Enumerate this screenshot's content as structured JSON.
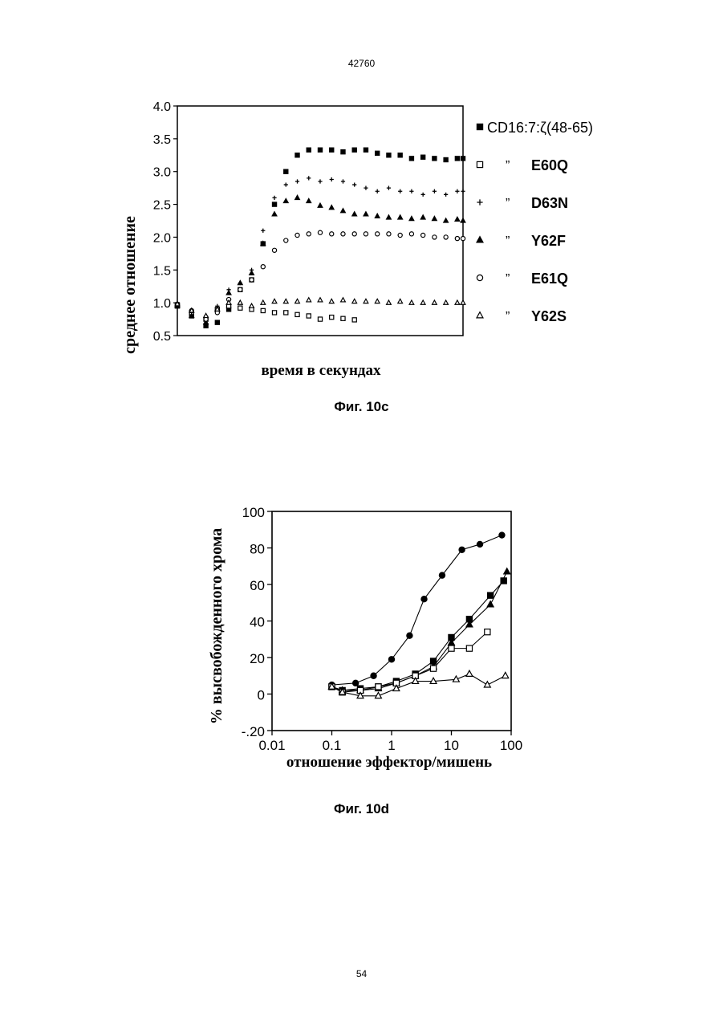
{
  "header": {
    "doc_number": "42760"
  },
  "footer": {
    "page_number": "54"
  },
  "figures": {
    "fig_10c": {
      "caption": "Фиг. 10с"
    },
    "fig_10d": {
      "caption": "Фиг. 10d"
    }
  },
  "chart_data": [
    {
      "type": "scatter",
      "title": "",
      "xlabel": "время в секундах",
      "ylabel": "среднее отношение",
      "xlim": [
        0,
        100
      ],
      "ylim": [
        0.5,
        4.0
      ],
      "yticks": [
        "4.0",
        "3.5",
        "3.0",
        "2.5",
        "2.0",
        "1.5",
        "1.0",
        "0.5"
      ],
      "grid": false,
      "legend_position": "right",
      "series": [
        {
          "name": "CD16:7:ζ(48-65)",
          "marker": "square-filled",
          "x": [
            0,
            5,
            10,
            14,
            18,
            22,
            26,
            30,
            34,
            38,
            42,
            46,
            50,
            54,
            58,
            62,
            66,
            70,
            74,
            78,
            82,
            86,
            90,
            94,
            98,
            100
          ],
          "y": [
            0.95,
            0.8,
            0.65,
            0.7,
            0.9,
            1.2,
            1.35,
            1.9,
            2.5,
            3.0,
            3.25,
            3.33,
            3.33,
            3.33,
            3.3,
            3.33,
            3.33,
            3.28,
            3.25,
            3.25,
            3.2,
            3.22,
            3.2,
            3.18,
            3.2,
            3.2
          ]
        },
        {
          "name": "E60Q",
          "marker": "square-open",
          "x": [
            0,
            5,
            10,
            14,
            18,
            22,
            26,
            30,
            34,
            38,
            42,
            46,
            50,
            54,
            58,
            62,
            66,
            70,
            74,
            78,
            82,
            86,
            90,
            94,
            98,
            100
          ],
          "y": [
            0.97,
            0.85,
            0.75,
            0.9,
            0.95,
            0.92,
            0.9,
            0.88,
            0.85,
            0.85,
            0.82,
            0.8,
            0.75,
            0.78,
            0.76,
            0.74,
            null,
            null,
            null,
            null,
            null,
            null,
            null,
            null,
            null,
            null
          ]
        },
        {
          "name": "D63N",
          "marker": "plus",
          "x": [
            0,
            5,
            10,
            14,
            18,
            22,
            26,
            30,
            34,
            38,
            42,
            46,
            50,
            54,
            58,
            62,
            66,
            70,
            74,
            78,
            82,
            86,
            90,
            94,
            98,
            100
          ],
          "y": [
            0.95,
            0.85,
            0.8,
            0.95,
            1.2,
            1.3,
            1.5,
            2.1,
            2.6,
            2.8,
            2.85,
            2.9,
            2.85,
            2.88,
            2.85,
            2.8,
            2.75,
            2.7,
            2.75,
            2.7,
            2.7,
            2.65,
            2.7,
            2.65,
            2.7,
            2.7
          ]
        },
        {
          "name": "Y62F",
          "marker": "triangle-filled",
          "x": [
            0,
            5,
            10,
            14,
            18,
            22,
            26,
            30,
            34,
            38,
            42,
            46,
            50,
            54,
            58,
            62,
            66,
            70,
            74,
            78,
            82,
            86,
            90,
            94,
            98,
            100
          ],
          "y": [
            0.95,
            0.8,
            0.7,
            0.9,
            1.15,
            1.3,
            1.45,
            1.9,
            2.35,
            2.55,
            2.6,
            2.55,
            2.48,
            2.45,
            2.4,
            2.35,
            2.35,
            2.32,
            2.3,
            2.3,
            2.28,
            2.3,
            2.28,
            2.25,
            2.27,
            2.25
          ]
        },
        {
          "name": "E61Q",
          "marker": "circle-open",
          "x": [
            0,
            5,
            10,
            14,
            18,
            22,
            26,
            30,
            34,
            38,
            42,
            46,
            50,
            54,
            58,
            62,
            66,
            70,
            74,
            78,
            82,
            86,
            90,
            94,
            98,
            100
          ],
          "y": [
            0.98,
            0.88,
            0.75,
            0.85,
            1.05,
            1.2,
            1.35,
            1.55,
            1.8,
            1.95,
            2.03,
            2.05,
            2.07,
            2.05,
            2.05,
            2.05,
            2.05,
            2.05,
            2.05,
            2.03,
            2.05,
            2.03,
            2.0,
            2.0,
            1.98,
            1.98
          ]
        },
        {
          "name": "Y62S",
          "marker": "triangle-open",
          "x": [
            0,
            5,
            10,
            14,
            18,
            22,
            26,
            30,
            34,
            38,
            42,
            46,
            50,
            54,
            58,
            62,
            66,
            70,
            74,
            78,
            82,
            86,
            90,
            94,
            98,
            100
          ],
          "y": [
            0.98,
            0.88,
            0.8,
            0.9,
            1.0,
            1.0,
            0.95,
            1.0,
            1.02,
            1.02,
            1.02,
            1.04,
            1.04,
            1.02,
            1.04,
            1.02,
            1.02,
            1.02,
            1.0,
            1.02,
            1.0,
            1.0,
            1.0,
            1.0,
            1.0,
            1.0
          ]
        }
      ]
    },
    {
      "type": "line",
      "title": "",
      "xlabel": "отношение эффектор/мишень",
      "ylabel": "% высвобожденного хрома",
      "xscale": "log",
      "xlim": [
        0.01,
        100
      ],
      "ylim": [
        -20,
        100
      ],
      "xticks": [
        "0.01",
        "0.1",
        "1",
        "10",
        "100"
      ],
      "yticks": [
        "100",
        "80",
        "60",
        "40",
        "20",
        "0",
        "-.20"
      ],
      "grid": false,
      "series": [
        {
          "marker": "circle-filled",
          "x": [
            0.1,
            0.25,
            0.5,
            1,
            2,
            3.5,
            7,
            15,
            30,
            70
          ],
          "y": [
            5,
            6,
            10,
            19,
            32,
            52,
            65,
            79,
            82,
            87
          ]
        },
        {
          "marker": "square-filled",
          "x": [
            0.1,
            0.15,
            0.3,
            0.6,
            1.2,
            2.5,
            5,
            10,
            20,
            45,
            75
          ],
          "y": [
            4,
            2,
            3,
            4,
            7,
            11,
            18,
            31,
            41,
            54,
            62
          ]
        },
        {
          "marker": "triangle-filled",
          "x": [
            0.1,
            0.15,
            0.3,
            0.6,
            1.2,
            2.5,
            5,
            10,
            20,
            45,
            85
          ],
          "y": [
            4,
            2,
            2,
            3,
            6,
            10,
            15,
            28,
            38,
            49,
            67
          ]
        },
        {
          "marker": "square-open",
          "x": [
            0.1,
            0.15,
            0.3,
            0.6,
            1.2,
            2.5,
            5,
            10,
            20,
            40
          ],
          "y": [
            4,
            1,
            2,
            4,
            6,
            10,
            14,
            25,
            25,
            34
          ]
        },
        {
          "marker": "triangle-open",
          "x": [
            0.1,
            0.15,
            0.3,
            0.6,
            1.2,
            2.5,
            5,
            12,
            20,
            40,
            80
          ],
          "y": [
            4,
            1,
            -1,
            -1,
            3,
            7,
            7,
            8,
            11,
            5,
            10
          ]
        }
      ]
    }
  ]
}
